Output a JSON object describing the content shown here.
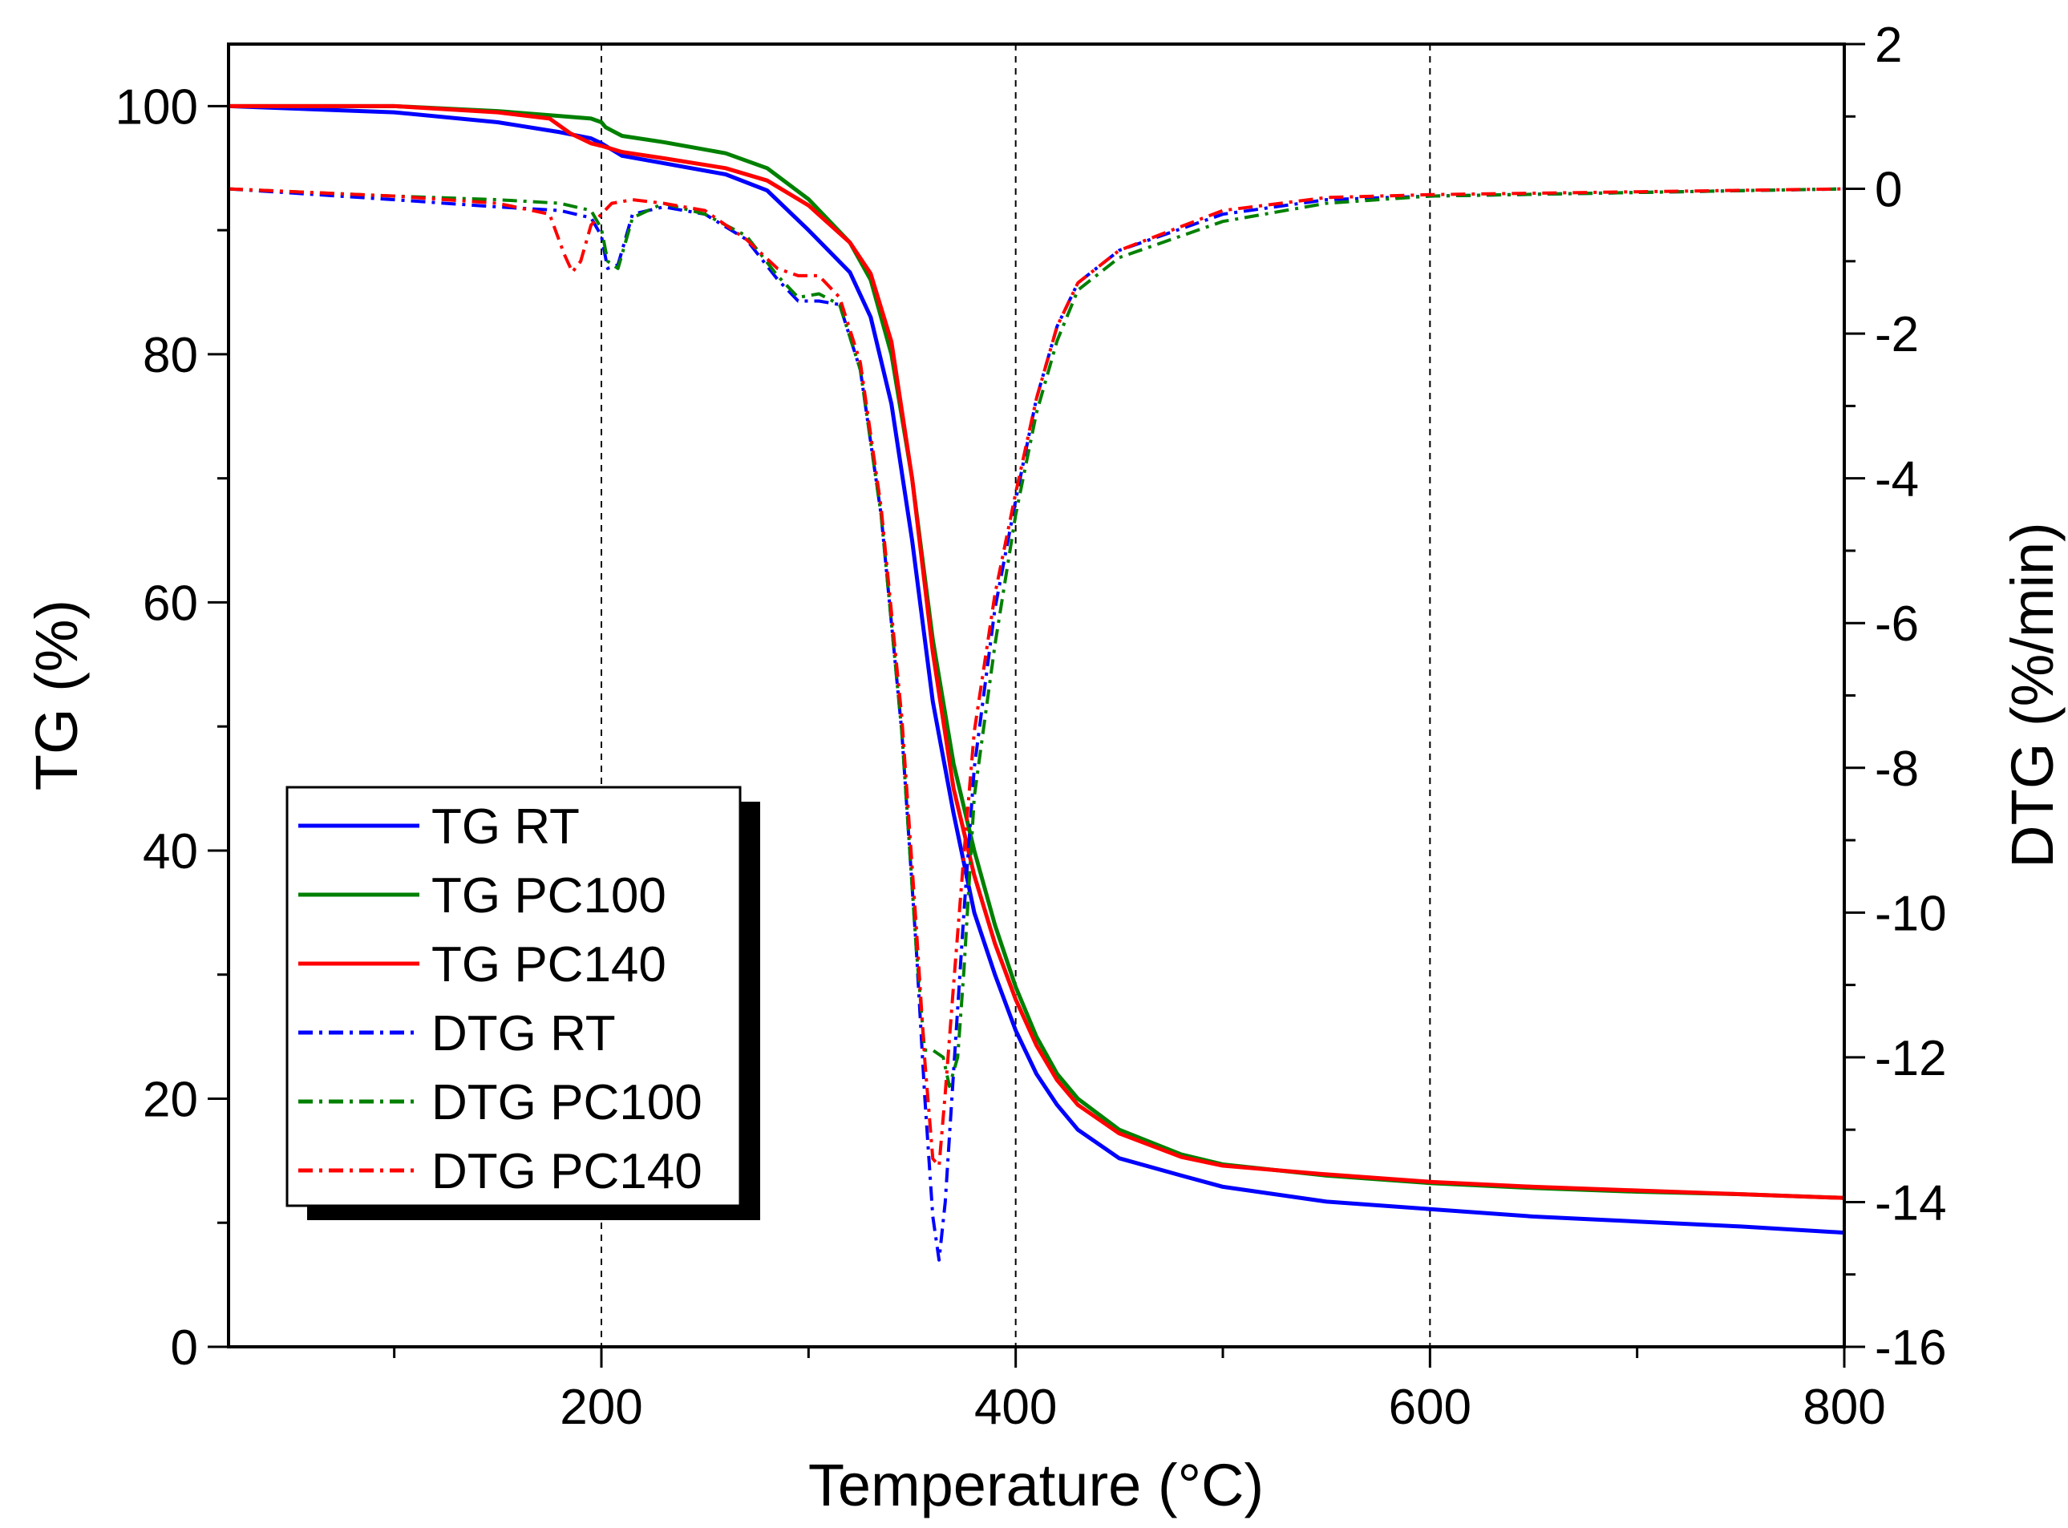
{
  "chart_data": {
    "type": "line",
    "title": "",
    "xlabel": "Temperature (°C)",
    "ylabel_left": "TG (%)",
    "ylabel_right": "DTG (%/min)",
    "xlim": [
      20,
      800
    ],
    "ylim_left": [
      0,
      105
    ],
    "ylim_right": [
      -16,
      2
    ],
    "xticks": [
      200,
      400,
      600,
      800
    ],
    "yticks_left": [
      0,
      20,
      40,
      60,
      80,
      100
    ],
    "yticks_right": [
      -16,
      -14,
      -12,
      -10,
      -8,
      -6,
      -4,
      -2,
      0,
      2
    ],
    "reference_lines_x": [
      200,
      400,
      600
    ],
    "legend_position": "lower-left",
    "series": [
      {
        "name": "TG RT",
        "axis": "left",
        "style": "solid",
        "color": "#0000ff",
        "x": [
          20,
          100,
          150,
          180,
          195,
          200,
          210,
          230,
          260,
          280,
          300,
          320,
          330,
          340,
          350,
          360,
          370,
          380,
          390,
          400,
          410,
          420,
          430,
          450,
          480,
          500,
          550,
          600,
          650,
          700,
          750,
          800
        ],
        "y": [
          100,
          99.5,
          98.7,
          97.9,
          97.4,
          97.0,
          96.0,
          95.4,
          94.5,
          93.2,
          90.0,
          86.6,
          83.0,
          76.0,
          65.0,
          52.0,
          43.0,
          35.0,
          30.0,
          25.5,
          22.0,
          19.5,
          17.5,
          15.2,
          13.8,
          12.9,
          11.7,
          11.1,
          10.5,
          10.1,
          9.7,
          9.2
        ]
      },
      {
        "name": "TG PC100",
        "axis": "left",
        "style": "solid",
        "color": "#008000",
        "x": [
          20,
          100,
          150,
          180,
          195,
          200,
          202,
          210,
          230,
          260,
          280,
          300,
          320,
          330,
          340,
          350,
          360,
          370,
          380,
          390,
          400,
          410,
          420,
          430,
          450,
          480,
          500,
          550,
          600,
          650,
          700,
          750,
          800
        ],
        "y": [
          100,
          100,
          99.6,
          99.2,
          99.0,
          98.7,
          98.3,
          97.6,
          97.1,
          96.2,
          95.0,
          92.5,
          89.0,
          86.0,
          80.0,
          70.0,
          57.0,
          47.0,
          40.0,
          34.0,
          29.0,
          25.0,
          22.0,
          20.0,
          17.5,
          15.5,
          14.7,
          13.8,
          13.2,
          12.8,
          12.5,
          12.3,
          12.0
        ]
      },
      {
        "name": "TG PC140",
        "axis": "left",
        "style": "solid",
        "color": "#ff0000",
        "x": [
          20,
          100,
          150,
          175,
          185,
          195,
          200,
          210,
          230,
          260,
          280,
          300,
          320,
          330,
          340,
          350,
          360,
          370,
          380,
          390,
          400,
          410,
          420,
          430,
          450,
          480,
          500,
          550,
          600,
          650,
          700,
          750,
          800
        ],
        "y": [
          100,
          100,
          99.5,
          99.0,
          97.8,
          97.0,
          96.8,
          96.3,
          95.8,
          95.0,
          94.0,
          92.0,
          89.0,
          86.5,
          81.0,
          70.0,
          56.0,
          45.0,
          38.0,
          32.5,
          28.0,
          24.3,
          21.5,
          19.5,
          17.2,
          15.3,
          14.6,
          13.9,
          13.3,
          12.9,
          12.6,
          12.3,
          12.0
        ]
      },
      {
        "name": "DTG RT",
        "axis": "right",
        "style": "dashdot",
        "color": "#0000ff",
        "x": [
          20,
          100,
          150,
          180,
          195,
          200,
          203,
          208,
          215,
          230,
          250,
          270,
          285,
          295,
          305,
          315,
          325,
          335,
          345,
          352,
          356,
          360,
          363,
          366,
          370,
          375,
          380,
          390,
          400,
          410,
          420,
          430,
          450,
          500,
          550,
          600,
          700,
          800
        ],
        "y": [
          0,
          -0.15,
          -0.25,
          -0.3,
          -0.4,
          -0.65,
          -1.1,
          -1.05,
          -0.35,
          -0.25,
          -0.35,
          -0.7,
          -1.25,
          -1.55,
          -1.55,
          -1.6,
          -2.5,
          -4.5,
          -7.5,
          -10.5,
          -12.5,
          -14.2,
          -14.8,
          -14.0,
          -12.2,
          -10.0,
          -8.0,
          -5.8,
          -4.3,
          -2.9,
          -1.9,
          -1.3,
          -0.85,
          -0.35,
          -0.15,
          -0.1,
          -0.05,
          0
        ]
      },
      {
        "name": "DTG PC100",
        "axis": "right",
        "style": "dashdot",
        "color": "#008000",
        "x": [
          20,
          100,
          150,
          180,
          195,
          200,
          203,
          208,
          215,
          230,
          250,
          270,
          285,
          295,
          305,
          315,
          325,
          335,
          345,
          352,
          356,
          360,
          365,
          368,
          372,
          375,
          380,
          390,
          400,
          410,
          420,
          430,
          450,
          500,
          550,
          600,
          700,
          800
        ],
        "y": [
          0,
          -0.1,
          -0.15,
          -0.2,
          -0.3,
          -0.55,
          -1.0,
          -1.1,
          -0.4,
          -0.2,
          -0.35,
          -0.65,
          -1.2,
          -1.5,
          -1.45,
          -1.6,
          -2.5,
          -4.5,
          -7.5,
          -10.5,
          -11.9,
          -11.9,
          -12.0,
          -12.4,
          -12.0,
          -10.8,
          -8.4,
          -6.3,
          -4.5,
          -3.1,
          -2.1,
          -1.4,
          -0.95,
          -0.45,
          -0.2,
          -0.1,
          -0.05,
          0
        ]
      },
      {
        "name": "DTG PC140",
        "axis": "right",
        "style": "dashdot",
        "color": "#ff0000",
        "x": [
          20,
          100,
          150,
          175,
          182,
          186,
          190,
          195,
          200,
          205,
          215,
          230,
          250,
          270,
          285,
          295,
          305,
          315,
          325,
          335,
          345,
          352,
          356,
          360,
          363,
          366,
          370,
          375,
          380,
          390,
          400,
          410,
          420,
          430,
          450,
          500,
          550,
          600,
          700,
          800
        ],
        "y": [
          0,
          -0.1,
          -0.2,
          -0.35,
          -0.9,
          -1.15,
          -1.0,
          -0.5,
          -0.35,
          -0.2,
          -0.15,
          -0.2,
          -0.3,
          -0.7,
          -1.1,
          -1.2,
          -1.2,
          -1.5,
          -2.4,
          -4.4,
          -7.3,
          -10.2,
          -12.0,
          -13.4,
          -13.5,
          -12.5,
          -11.0,
          -9.2,
          -7.5,
          -5.6,
          -4.2,
          -2.9,
          -1.9,
          -1.3,
          -0.85,
          -0.3,
          -0.12,
          -0.08,
          -0.04,
          0
        ]
      }
    ]
  }
}
